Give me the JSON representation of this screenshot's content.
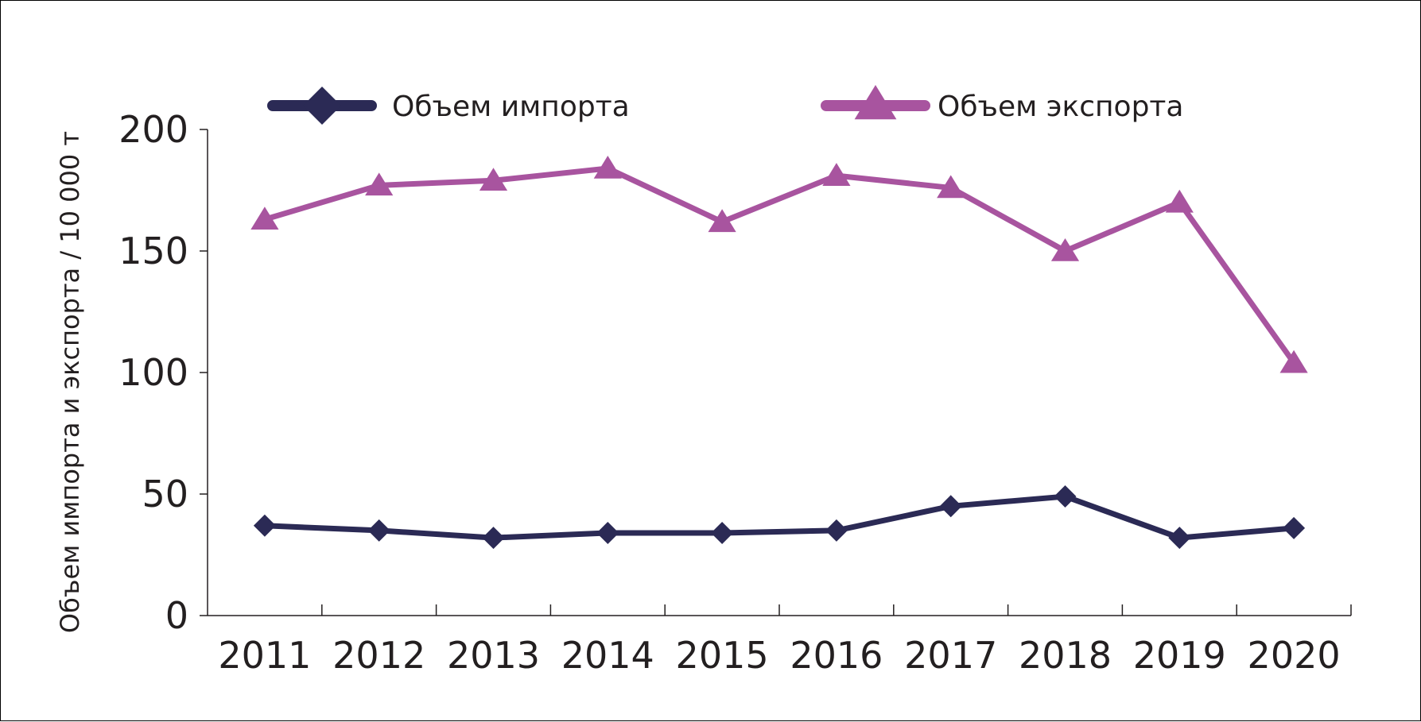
{
  "chart_data": {
    "type": "line",
    "categories": [
      "2011",
      "2012",
      "2013",
      "2014",
      "2015",
      "2016",
      "2017",
      "2018",
      "2019",
      "2020"
    ],
    "ylabel": "Объем импорта и  экспорта / 10 000 т",
    "ylim": [
      0,
      200
    ],
    "yticks": [
      0,
      50,
      100,
      150,
      200
    ],
    "grid": false,
    "legend_position": "top",
    "series": [
      {
        "name": "Объем импорта",
        "marker": "diamond",
        "color": "#2b2a55",
        "values": [
          37,
          35,
          32,
          34,
          34,
          35,
          45,
          49,
          32,
          36
        ]
      },
      {
        "name": "Объем экспорта",
        "marker": "triangle",
        "color": "#a8549f",
        "values": [
          163,
          177,
          179,
          184,
          162,
          181,
          176,
          150,
          170,
          104
        ]
      }
    ]
  }
}
